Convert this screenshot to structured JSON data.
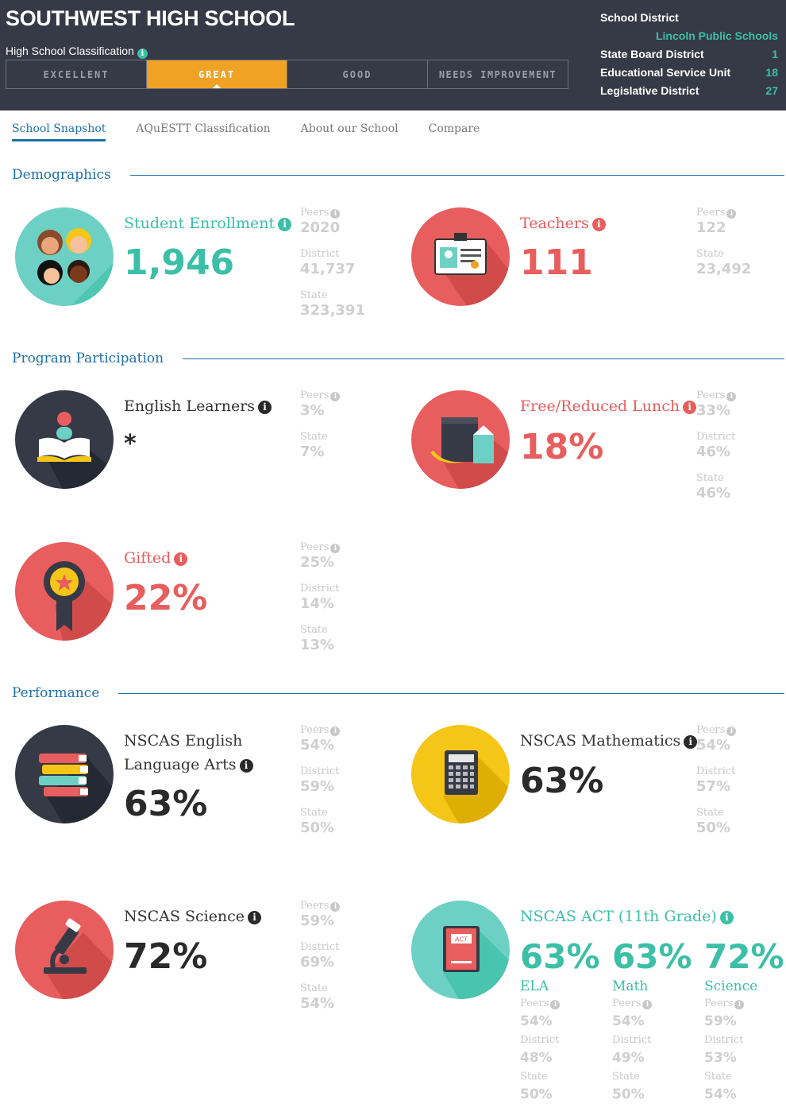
{
  "header": {
    "school_name": "SOUTHWEST HIGH SCHOOL",
    "classification_label": "High School Classification",
    "classifications": [
      "EXCELLENT",
      "GREAT",
      "GOOD",
      "NEEDS IMPROVEMENT"
    ],
    "active_classification": "GREAT",
    "district": {
      "school_district_label": "School District",
      "school_district_value": "Lincoln Public Schools",
      "state_board_label": "State Board District",
      "state_board_value": "1",
      "esu_label": "Educational Service Unit",
      "esu_value": "18",
      "legislative_label": "Legislative District",
      "legislative_value": "27"
    }
  },
  "tabs": [
    "School Snapshot",
    "AQuESTT Classification",
    "About our School",
    "Compare"
  ],
  "sections": {
    "demographics": "Demographics",
    "program": "Program Participation",
    "performance": "Performance"
  },
  "labels": {
    "peers": "Peers",
    "district": "District",
    "state": "State"
  },
  "stats": {
    "enrollment": {
      "title": "Student Enrollment",
      "value": "1,946",
      "peers": "2020",
      "district": "41,737",
      "state": "323,391"
    },
    "teachers": {
      "title": "Teachers",
      "value": "111",
      "peers": "122",
      "state": "23,492"
    },
    "ell": {
      "title": "English Learners",
      "value": "*",
      "peers": "3%",
      "state": "7%"
    },
    "frl": {
      "title": "Free/Reduced Lunch",
      "value": "18%",
      "peers": "33%",
      "district": "46%",
      "state": "46%"
    },
    "gifted": {
      "title": "Gifted",
      "value": "22%",
      "peers": "25%",
      "district": "14%",
      "state": "13%"
    },
    "ela": {
      "title_line1": "NSCAS English",
      "title_line2": "Language Arts",
      "value": "63%",
      "peers": "54%",
      "district": "59%",
      "state": "50%"
    },
    "math": {
      "title": "NSCAS Mathematics",
      "value": "63%",
      "peers": "54%",
      "district": "57%",
      "state": "50%"
    },
    "science": {
      "title": "NSCAS Science",
      "value": "72%",
      "peers": "59%",
      "district": "69%",
      "state": "54%"
    },
    "act": {
      "title": "NSCAS ACT (11th Grade)",
      "icon_text": "ACT",
      "cols": [
        {
          "value": "63%",
          "subject": "ELA",
          "peers": "54%",
          "district": "48%",
          "state": "50%"
        },
        {
          "value": "63%",
          "subject": "Math",
          "peers": "54%",
          "district": "49%",
          "state": "50%"
        },
        {
          "value": "72%",
          "subject": "Science",
          "peers": "59%",
          "district": "53%",
          "state": "54%"
        }
      ]
    }
  },
  "colors": {
    "teal": "#3bbfa7",
    "red": "#e85d5d",
    "orange": "#f0a224",
    "navy": "#363a46",
    "blue": "#1e6fa8",
    "yellow": "#f5c518"
  }
}
